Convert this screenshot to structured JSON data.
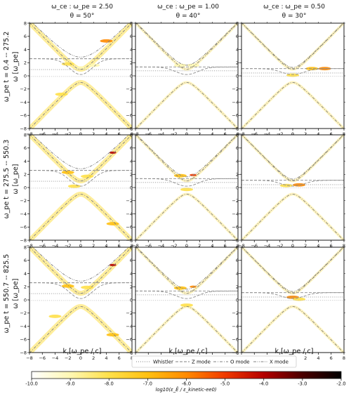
{
  "chart_data": {
    "type": "heatmap",
    "column_titles": [
      {
        "line1": "ω_ce : ω_pe = 2.50",
        "line2": "θ = 50°"
      },
      {
        "line1": "ω_ce : ω_pe = 1.00",
        "line2": "θ = 40°"
      },
      {
        "line1": "ω_ce : ω_pe = 0.50",
        "line2": "θ = 30°"
      }
    ],
    "row_labels": [
      "ω_pe t = 0.4 -- 275.2",
      "ω_pe t = 275.5 -- 550.3",
      "ω_pe t = 550.7 -- 825.5"
    ],
    "ylabel": "ω [ω_pe]",
    "xlabel": "k [ω_pe / c]",
    "xlim": [
      -8,
      8
    ],
    "ylim": [
      -8,
      8
    ],
    "xticks": [
      -8,
      -6,
      -4,
      -2,
      0,
      2,
      4,
      6,
      8
    ],
    "yticks": [
      -8,
      -6,
      -4,
      -2,
      0,
      2,
      4,
      6,
      8
    ],
    "columns": [
      {
        "wce": 2.5,
        "theta_deg": 50
      },
      {
        "wce": 1.0,
        "theta_deg": 40
      },
      {
        "wce": 0.5,
        "theta_deg": 30
      }
    ],
    "legend": {
      "placement": "bottom",
      "entries": [
        {
          "name": "Whistler",
          "style": "dotted",
          "color": "#9a9a9a"
        },
        {
          "name": "Z mode",
          "style": "dashed",
          "color": "#9a9a9a"
        },
        {
          "name": "O mode",
          "style": "dashdot",
          "color": "#9a9a9a"
        },
        {
          "name": "X mode",
          "style": "dashdotdot",
          "color": "#9a9a9a"
        }
      ]
    },
    "colorbar": {
      "label": "log10(ε_Ê / ε_kinetic-ee0)",
      "range": [
        -10.0,
        -2.0
      ],
      "ticks": [
        "-10.0",
        "-9.0",
        "-8.0",
        "-7.0",
        "-6.0",
        "-5.0",
        "-4.0",
        "-3.0",
        "-2.0"
      ],
      "colormap": [
        "#ffffff",
        "#fff7b2",
        "#ffe04a",
        "#ffc012",
        "#ff8a00",
        "#f03a00",
        "#b40000",
        "#4a0000",
        "#000000"
      ]
    },
    "hotspots": [
      {
        "panel": 0,
        "row": 0,
        "points": [
          {
            "k": -2,
            "w": 1.8,
            "level": -8.5
          },
          {
            "k": 0,
            "w": 1.2,
            "level": -8.8
          },
          {
            "k": 4,
            "w": 5.3,
            "level": -6.5
          },
          {
            "k": -3,
            "w": -2.8,
            "level": -8.0
          },
          {
            "k": 2,
            "w": 1.6,
            "level": -8.6
          }
        ]
      },
      {
        "panel": 1,
        "row": 0,
        "points": [
          {
            "k": -1,
            "w": 1.6,
            "level": -8.8
          },
          {
            "k": 1,
            "w": 1.6,
            "level": -8.8
          }
        ]
      },
      {
        "panel": 2,
        "row": 0,
        "points": [
          {
            "k": 3,
            "w": 1.1,
            "level": -7.0
          },
          {
            "k": 5,
            "w": 1.1,
            "level": -6.5
          },
          {
            "k": 0,
            "w": 0.1,
            "level": -8.5
          }
        ]
      },
      {
        "panel": 0,
        "row": 1,
        "points": [
          {
            "k": 5,
            "w": 5.3,
            "level": -4.2
          },
          {
            "k": -2,
            "w": 2.3,
            "level": -7.0
          },
          {
            "k": 1,
            "w": 1.7,
            "level": -8.0
          },
          {
            "k": -1,
            "w": 0.2,
            "level": -8.5
          },
          {
            "k": 5,
            "w": -5.5,
            "level": -7.5
          }
        ]
      },
      {
        "panel": 1,
        "row": 1,
        "points": [
          {
            "k": 1,
            "w": 1.9,
            "level": -5.5
          },
          {
            "k": -1,
            "w": 1.8,
            "level": -7.5
          },
          {
            "k": 0,
            "w": -0.3,
            "level": -8.5
          }
        ]
      },
      {
        "panel": 2,
        "row": 1,
        "points": [
          {
            "k": 1,
            "w": 0.4,
            "level": -6.5
          },
          {
            "k": -1,
            "w": 0.3,
            "level": -8.0
          }
        ]
      },
      {
        "panel": 0,
        "row": 2,
        "points": [
          {
            "k": 5,
            "w": 5.3,
            "level": -4.0
          },
          {
            "k": -2,
            "w": 2.1,
            "level": -7.0
          },
          {
            "k": 1,
            "w": 1.9,
            "level": -8.0
          },
          {
            "k": -4,
            "w": -2.5,
            "level": -8.2
          },
          {
            "k": 5,
            "w": -5.3,
            "level": -7.5
          }
        ]
      },
      {
        "panel": 1,
        "row": 2,
        "points": [
          {
            "k": 1,
            "w": 2.0,
            "level": -5.8
          },
          {
            "k": -1,
            "w": 1.8,
            "level": -7.5
          },
          {
            "k": 0,
            "w": -0.8,
            "level": -8.5
          }
        ]
      },
      {
        "panel": 2,
        "row": 2,
        "points": [
          {
            "k": 0,
            "w": 0.4,
            "level": -6.0
          },
          {
            "k": 1,
            "w": 0.1,
            "level": -8.0
          }
        ]
      }
    ]
  }
}
